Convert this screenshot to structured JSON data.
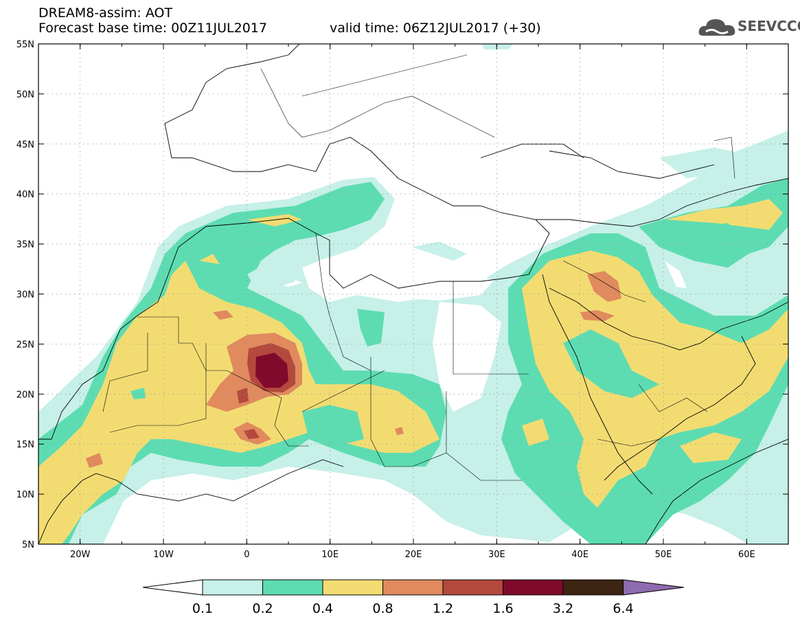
{
  "header": {
    "line1": "DREAM8-assim: AOT",
    "base_time": "Forecast base time: 00Z11JUL2017",
    "valid_time": "valid time: 06Z12JUL2017 (+30)"
  },
  "logo": {
    "text": "SEEVCCC",
    "icon": "cloud-icon"
  },
  "map": {
    "lon_ticks": [
      "20W",
      "10W",
      "0",
      "10E",
      "20E",
      "30E",
      "40E",
      "50E",
      "60E"
    ],
    "lat_ticks": [
      "55N",
      "50N",
      "45N",
      "40N",
      "35N",
      "30N",
      "25N",
      "20N",
      "15N",
      "10N",
      "5N"
    ],
    "lon_range": [
      -25,
      65
    ],
    "lat_range": [
      5,
      55
    ],
    "gridlines": "dotted"
  },
  "legend": {
    "levels": [
      "0.1",
      "0.2",
      "0.4",
      "0.8",
      "1.2",
      "1.6",
      "3.2",
      "6.4"
    ],
    "colors": [
      "#ffffff",
      "#c6f0e8",
      "#5ddcb2",
      "#f2dc72",
      "#e08a5e",
      "#b4493e",
      "#800a2c",
      "#3e2412",
      "#8e6ab0"
    ]
  }
}
